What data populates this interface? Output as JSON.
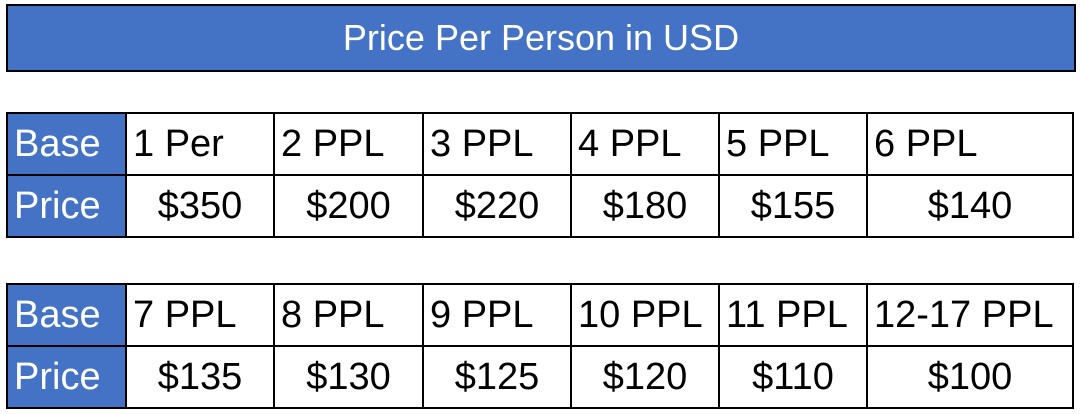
{
  "title": "Price Per Person in USD",
  "colors": {
    "header_bg": "#4472C4",
    "label_bg": "#4472C4"
  },
  "tables": [
    {
      "row_labels": [
        "Base",
        "Price"
      ],
      "groups": [
        "1 Per",
        "2 PPL",
        "3 PPL",
        "4 PPL",
        "5 PPL",
        "6 PPL"
      ],
      "prices": [
        "$350",
        "$200",
        "$220",
        "$180",
        "$155",
        "$140"
      ]
    },
    {
      "row_labels": [
        "Base",
        "Price"
      ],
      "groups": [
        "7 PPL",
        "8 PPL",
        "9 PPL",
        "10 PPL",
        "11 PPL",
        "12-17 PPL"
      ],
      "prices": [
        "$135",
        "$130",
        "$125",
        "$120",
        "$110",
        "$100"
      ]
    }
  ]
}
